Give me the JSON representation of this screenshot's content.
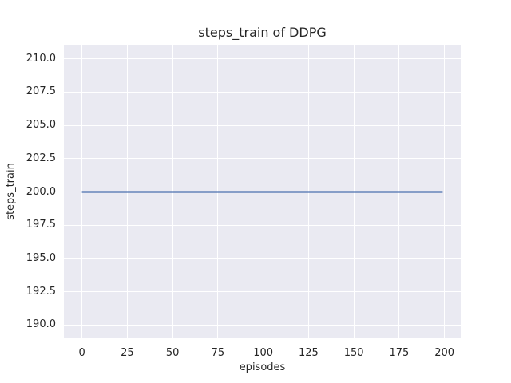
{
  "chart_data": {
    "type": "line",
    "title": "steps_train of DDPG",
    "xlabel": "episodes",
    "ylabel": "steps_train",
    "xlim": [
      -9.95,
      208.95
    ],
    "ylim": [
      189.0,
      211.0
    ],
    "grid": true,
    "legend": false,
    "x_ticks": {
      "values": [
        0,
        25,
        50,
        75,
        100,
        125,
        150,
        175,
        200
      ],
      "labels": [
        "0",
        "25",
        "50",
        "75",
        "100",
        "125",
        "150",
        "175",
        "200"
      ]
    },
    "y_ticks": {
      "values": [
        190.0,
        192.5,
        195.0,
        197.5,
        200.0,
        202.5,
        205.0,
        207.5,
        210.0
      ],
      "labels": [
        "190.0",
        "192.5",
        "195.0",
        "197.5",
        "200.0",
        "202.5",
        "205.0",
        "207.5",
        "210.0"
      ]
    },
    "series": [
      {
        "name": "steps_train",
        "x": [
          0,
          199
        ],
        "y": [
          200,
          200
        ],
        "color": "#4c72b0",
        "line_width": 2.2
      }
    ],
    "colors": {
      "axes_background": "#eaeaf2",
      "grid": "#ffffff",
      "text": "#262626",
      "figure_background": "#ffffff"
    }
  }
}
